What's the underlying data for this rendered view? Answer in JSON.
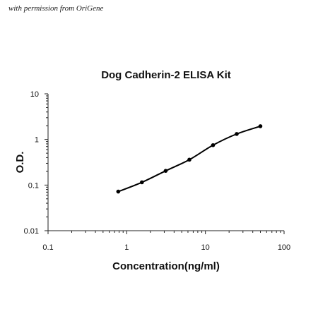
{
  "credit": "with permission from OriGene",
  "chart_data": {
    "type": "line",
    "title": "Dog Cadherin-2 ELISA Kit",
    "xlabel": "Concentration(ng/ml)",
    "ylabel": "O.D.",
    "xscale": "log",
    "yscale": "log",
    "xlim": [
      0.1,
      100
    ],
    "ylim": [
      0.01,
      10
    ],
    "xticks": [
      "0.1",
      "1",
      "10",
      "100"
    ],
    "yticks": [
      "0.01",
      "0.1",
      "1",
      "10"
    ],
    "grid": false,
    "legend": "none",
    "series": [
      {
        "x": [
          0.78,
          1.56,
          3.125,
          6.25,
          12.5,
          25,
          50
        ],
        "y": [
          0.072,
          0.115,
          0.205,
          0.36,
          0.75,
          1.32,
          1.95
        ],
        "color": "#000000"
      }
    ]
  }
}
